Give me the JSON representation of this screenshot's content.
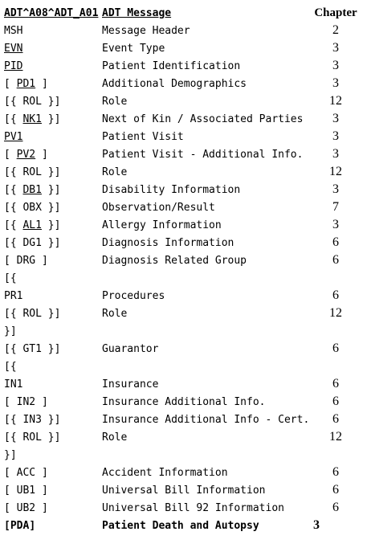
{
  "header": {
    "segment": "ADT^A08^ADT_A01",
    "message": "ADT Message",
    "chapter": "Chapter"
  },
  "rows": [
    {
      "pre": "",
      "code": "MSH",
      "post": "",
      "desc": "Message Header",
      "chapter": "2"
    },
    {
      "pre": "",
      "code": "EVN",
      "post": "",
      "desc": "Event Type",
      "chapter": "3"
    },
    {
      "pre": "",
      "code": "PID",
      "post": "",
      "desc": "Patient Identification",
      "chapter": "3"
    },
    {
      "pre": "[ ",
      "code": "PD1",
      "post": " ]",
      "desc": "Additional Demographics",
      "chapter": "3"
    },
    {
      "pre": "[{ ",
      "code": "ROL",
      "post": " }]",
      "desc": "Role",
      "chapter": "12"
    },
    {
      "pre": "[{ ",
      "code": "NK1",
      "post": " }]",
      "desc": "Next of Kin / Associated Parties",
      "chapter": "3"
    },
    {
      "pre": "",
      "code": "PV1",
      "post": "",
      "desc": "Patient Visit",
      "chapter": "3"
    },
    {
      "pre": "[ ",
      "code": "PV2",
      "post": " ]",
      "desc": "Patient Visit - Additional Info.",
      "chapter": "3"
    },
    {
      "pre": "[{ ",
      "code": "ROL",
      "post": " }]",
      "desc": "Role",
      "chapter": "12"
    },
    {
      "pre": "[{ ",
      "code": "DB1",
      "post": " }]",
      "desc": "Disability Information",
      "chapter": "3"
    },
    {
      "pre": "[{ ",
      "code": "OBX",
      "post": " }]",
      "desc": "Observation/Result",
      "chapter": "7"
    },
    {
      "pre": "[{ ",
      "code": "AL1",
      "post": " }]",
      "desc": "Allergy Information",
      "chapter": "3"
    },
    {
      "pre": "[{ ",
      "code": "DG1",
      "post": " }]",
      "desc": "Diagnosis Information",
      "chapter": "6"
    },
    {
      "pre": "[ ",
      "code": "DRG",
      "post": " ]",
      "desc": "Diagnosis Related Group",
      "chapter": "6"
    },
    {
      "pre": "[{",
      "code": "",
      "post": "",
      "desc": "",
      "chapter": ""
    },
    {
      "pre": "",
      "code": "PR1",
      "post": "",
      "desc": "Procedures",
      "chapter": "6"
    },
    {
      "pre": "[{ ",
      "code": "ROL",
      "post": " }]",
      "desc": "Role",
      "chapter": "12"
    },
    {
      "pre": "}]",
      "code": "",
      "post": "",
      "desc": "",
      "chapter": ""
    },
    {
      "pre": "[{ ",
      "code": "GT1",
      "post": " }]",
      "desc": "Guarantor",
      "chapter": "6"
    },
    {
      "pre": "[{",
      "code": "",
      "post": "",
      "desc": "",
      "chapter": ""
    },
    {
      "pre": "",
      "code": "IN1",
      "post": "",
      "desc": "Insurance",
      "chapter": "6"
    },
    {
      "pre": "[ ",
      "code": "IN2",
      "post": " ]",
      "desc": "Insurance Additional Info.",
      "chapter": "6"
    },
    {
      "pre": "[{ ",
      "code": "IN3",
      "post": " }]",
      "desc": "Insurance Additional Info - Cert.",
      "chapter": "6"
    },
    {
      "pre": "[{ ",
      "code": "ROL",
      "post": " }]",
      "desc": "Role",
      "chapter": "12"
    },
    {
      "pre": "}]",
      "code": "",
      "post": "",
      "desc": "",
      "chapter": ""
    },
    {
      "pre": "[ ",
      "code": "ACC",
      "post": " ]",
      "desc": "Accident Information",
      "chapter": "6"
    },
    {
      "pre": "[ ",
      "code": "UB1",
      "post": " ]",
      "desc": "Universal Bill Information",
      "chapter": "6"
    },
    {
      "pre": "[ ",
      "code": "UB2",
      "post": " ]",
      "desc": "Universal Bill 92 Information",
      "chapter": "6"
    },
    {
      "pre": "[",
      "code": "PDA",
      "post": "]",
      "desc": "Patient Death and Autopsy",
      "chapter": "3"
    }
  ]
}
